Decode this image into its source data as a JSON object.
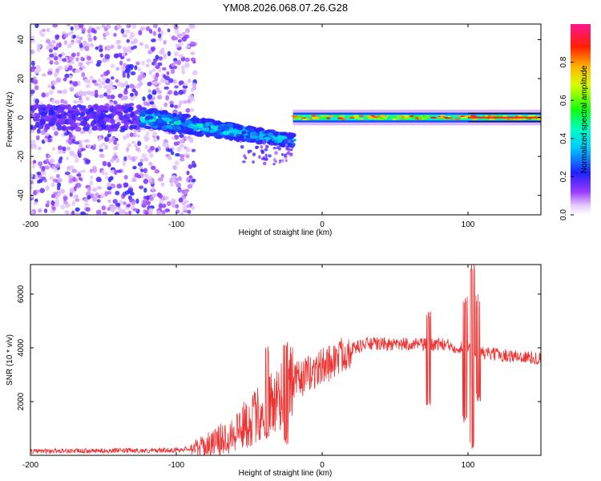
{
  "title": "YM08.2026.068.07.26.G28",
  "chart_data": [
    {
      "type": "heatmap",
      "xlabel": "Height of straight line (km)",
      "ylabel": "Frequency (Hz)",
      "xlim": [
        -200,
        150
      ],
      "ylim": [
        -50,
        48
      ],
      "x_ticks": [
        "-200",
        "-100",
        "0",
        "100"
      ],
      "x_tick_values": [
        -200,
        -100,
        0,
        100
      ],
      "y_ticks": [
        "-40",
        "-20",
        "0",
        "20",
        "40"
      ],
      "y_tick_values": [
        -40,
        -20,
        0,
        20,
        40
      ],
      "colorbar": {
        "label": "Normalized spectral amplitude",
        "ticks": [
          "0.0",
          "0.2",
          "0.4",
          "0.6",
          "0.8"
        ],
        "tick_values": [
          0.0,
          0.2,
          0.4,
          0.6,
          0.8
        ],
        "range": [
          0,
          1
        ],
        "colormap": "rainbow (white-violet-blue-cyan-green-yellow-orange-red-pink)"
      },
      "features": [
        {
          "description": "scattered noise",
          "x_range": [
            -200,
            -87
          ],
          "y_range": [
            -50,
            48
          ],
          "amplitude": [
            0.05,
            0.2
          ]
        },
        {
          "description": "descending frequency band",
          "x_range": [
            -124,
            -20
          ],
          "freq_start": 0,
          "freq_end": -12,
          "amplitude": [
            0.2,
            0.5
          ]
        },
        {
          "description": "stable carrier line",
          "x_range": [
            -20,
            150
          ],
          "freq": 0,
          "amplitude": [
            0.5,
            0.95
          ]
        }
      ]
    },
    {
      "type": "line",
      "xlabel": "Height of straight line (km)",
      "ylabel": "SNR (10 * v/v)",
      "xlim": [
        -200,
        150
      ],
      "ylim": [
        0,
        7100
      ],
      "x_ticks": [
        "-200",
        "-100",
        "0",
        "100"
      ],
      "x_tick_values": [
        -200,
        -100,
        0,
        100
      ],
      "y_ticks": [
        "2000",
        "4000",
        "6000"
      ],
      "y_tick_values": [
        2000,
        4000,
        6000
      ],
      "color": "#ee3333",
      "series": [
        {
          "name": "SNR",
          "x": [
            -200,
            -180,
            -160,
            -140,
            -120,
            -100,
            -90,
            -80,
            -70,
            -60,
            -50,
            -40,
            -30,
            -25,
            -20,
            -15,
            -10,
            -5,
            0,
            5,
            10,
            15,
            20,
            25,
            30,
            40,
            50,
            60,
            70,
            80,
            90,
            95,
            100,
            103,
            106,
            110,
            120,
            130,
            140,
            150
          ],
          "values": [
            150,
            170,
            160,
            180,
            170,
            200,
            260,
            360,
            550,
            900,
            1250,
            1700,
            2200,
            2500,
            2700,
            2850,
            3000,
            3150,
            3300,
            3450,
            3600,
            3800,
            3950,
            4050,
            4150,
            4150,
            4100,
            4150,
            4100,
            4150,
            4050,
            4000,
            4100,
            3900,
            3850,
            3800,
            3750,
            3700,
            3650,
            3600
          ]
        }
      ],
      "spikes": [
        {
          "x": -38,
          "min": 600,
          "max": 4100
        },
        {
          "x": -25,
          "min": 400,
          "max": 4300
        },
        {
          "x": 73,
          "min": 1800,
          "max": 5400
        },
        {
          "x": 98,
          "min": 1200,
          "max": 5900
        },
        {
          "x": 103,
          "min": 250,
          "max": 7100
        },
        {
          "x": 107,
          "min": 2000,
          "max": 6000
        }
      ]
    }
  ]
}
